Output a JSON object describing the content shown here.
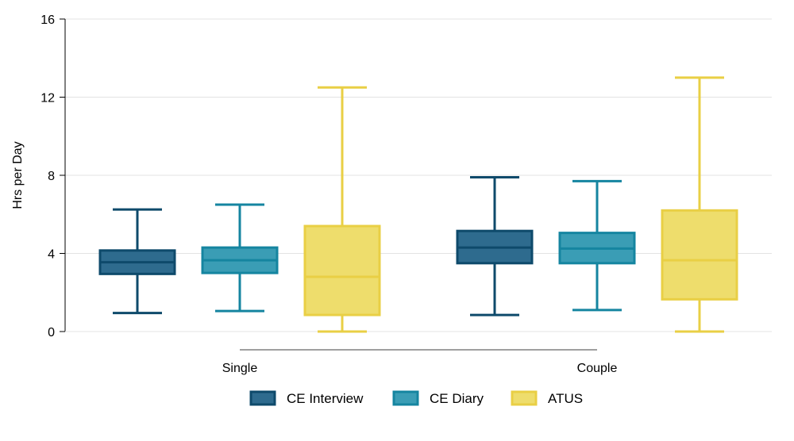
{
  "chart_data": {
    "type": "box",
    "title": "",
    "xlabel": "",
    "ylabel": "Hrs per Day",
    "ylim": [
      0,
      16
    ],
    "yticks": [
      "0",
      "4",
      "8",
      "12",
      "16"
    ],
    "grid": true,
    "legend_position": "bottom",
    "categories": [
      "Single",
      "Couple"
    ],
    "series": [
      {
        "name": "CE Interview",
        "fill": "#2E6B8E",
        "stroke": "#0E4A6B",
        "boxes": [
          {
            "min": 0.95,
            "q1": 2.95,
            "median": 3.55,
            "q3": 4.15,
            "max": 6.25
          },
          {
            "min": 0.85,
            "q1": 3.5,
            "median": 4.3,
            "q3": 5.15,
            "max": 7.9
          }
        ]
      },
      {
        "name": "CE Diary",
        "fill": "#3A9DB5",
        "stroke": "#1585A0",
        "boxes": [
          {
            "min": 1.05,
            "q1": 3.0,
            "median": 3.65,
            "q3": 4.3,
            "max": 6.5
          },
          {
            "min": 1.1,
            "q1": 3.5,
            "median": 4.25,
            "q3": 5.05,
            "max": 7.7
          }
        ]
      },
      {
        "name": "ATUS",
        "fill": "#EEDD6C",
        "stroke": "#E9CF45",
        "boxes": [
          {
            "min": 0.0,
            "q1": 0.85,
            "median": 2.8,
            "q3": 5.4,
            "max": 12.5
          },
          {
            "min": 0.0,
            "q1": 1.65,
            "median": 3.65,
            "q3": 6.2,
            "max": 13.0
          }
        ]
      }
    ]
  }
}
